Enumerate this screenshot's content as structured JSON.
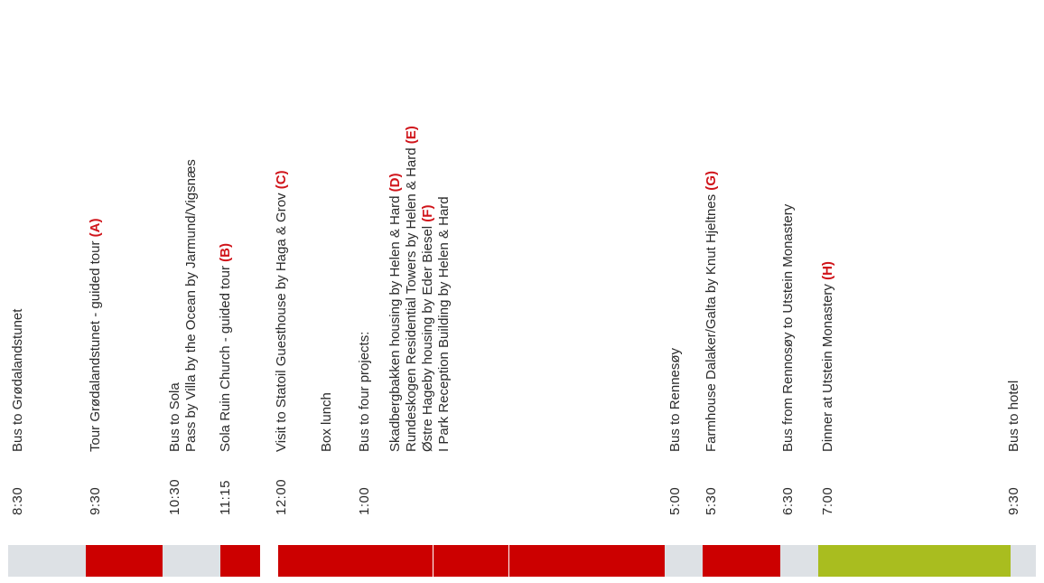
{
  "colors": {
    "gray": "#dde1e5",
    "red": "#cc0000",
    "green": "#a9bd1f",
    "accent": "#d0141a"
  },
  "items": [
    {
      "time": "8:30",
      "lines": [
        "Bus to Grødalandstunet"
      ],
      "tag": ""
    },
    {
      "time": "9:30",
      "lines": [
        "Tour Grødalandstunet - guided tour "
      ],
      "tag": "(A)"
    },
    {
      "time": "10:30",
      "lines": [
        "Bus to Sola",
        "Pass by Villa by the Ocean by Jarmund/Vigsnæs"
      ],
      "tag": ""
    },
    {
      "time": "11:15",
      "lines": [
        "Sola Ruin Church - guided tour "
      ],
      "tag": "(B)"
    },
    {
      "time": "12:00",
      "lines": [
        "Visit to Statoil Guesthouse by Haga & Grov "
      ],
      "tag": "(C)"
    },
    {
      "time": "",
      "lines": [
        "Box lunch"
      ],
      "tag": ""
    },
    {
      "time": "1:00",
      "lines": [
        "Bus to four projects:"
      ],
      "tag": ""
    },
    {
      "time": "",
      "lines": [
        "Skadbergbakken housing by Helen & Hard "
      ],
      "tag": "(D)"
    },
    {
      "time": "",
      "lines": [
        "Rundeskogen Residential Towers by Helen & Hard "
      ],
      "tag": "(E)"
    },
    {
      "time": "",
      "lines": [
        "Østre Hageby housing by Eder Biesel "
      ],
      "tag": "(F)"
    },
    {
      "time": "",
      "lines": [
        "I Park Reception Building by Helen & Hard"
      ],
      "tag": ""
    },
    {
      "time": "5:00",
      "lines": [
        "Bus to Rennesøy"
      ],
      "tag": ""
    },
    {
      "time": "5:30",
      "lines": [
        "Farmhouse Dalaker/Galta by Knut Hjeltnes "
      ],
      "tag": "(G)"
    },
    {
      "time": "6:30",
      "lines": [
        "Bus from Rennosøy to Utstein Monastery"
      ],
      "tag": ""
    },
    {
      "time": "7:00",
      "lines": [
        "Dinner at Utstein Monastery "
      ],
      "tag": "(H)"
    },
    {
      "time": "9:30",
      "lines": [
        "Bus to hotel"
      ],
      "tag": ""
    }
  ],
  "segments": [
    {
      "color": "gray"
    },
    {
      "color": "red"
    },
    {
      "color": "gray"
    },
    {
      "color": "red"
    },
    {
      "color": "white"
    },
    {
      "color": "red"
    },
    {
      "color": "red"
    },
    {
      "color": "red"
    },
    {
      "color": "gray"
    },
    {
      "color": "red"
    },
    {
      "color": "gray"
    },
    {
      "color": "green"
    },
    {
      "color": "gray"
    }
  ]
}
